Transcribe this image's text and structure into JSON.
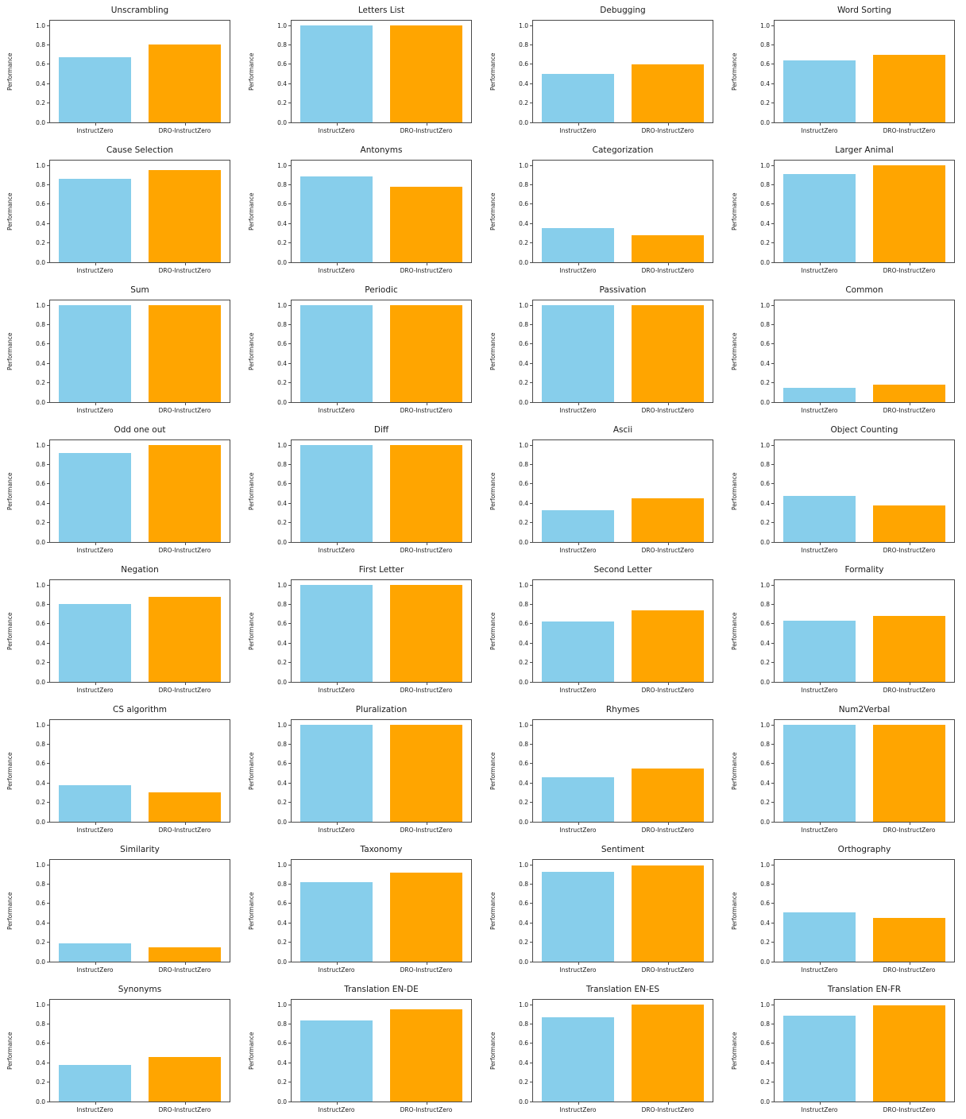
{
  "chart_data": {
    "type": "bar",
    "grid": {
      "rows": 8,
      "cols": 4
    },
    "categories": [
      "InstructZero",
      "DRO-InstructZero"
    ],
    "series_colors": [
      "#87CEEB",
      "#FFA500"
    ],
    "ylabel": "Performance",
    "yticks": [
      0.0,
      0.2,
      0.4,
      0.6,
      0.8,
      1.0
    ],
    "ylim": [
      0,
      1.05
    ],
    "grid_lines": "off",
    "legend": "none",
    "charts": [
      {
        "title": "Unscrambling",
        "values": [
          0.67,
          0.8
        ]
      },
      {
        "title": "Letters List",
        "values": [
          1.0,
          1.0
        ]
      },
      {
        "title": "Debugging",
        "values": [
          0.5,
          0.6
        ]
      },
      {
        "title": "Word Sorting",
        "values": [
          0.64,
          0.7
        ]
      },
      {
        "title": "Cause Selection",
        "values": [
          0.86,
          0.95
        ]
      },
      {
        "title": "Antonyms",
        "values": [
          0.89,
          0.78
        ]
      },
      {
        "title": "Categorization",
        "values": [
          0.35,
          0.28
        ]
      },
      {
        "title": "Larger Animal",
        "values": [
          0.91,
          1.0
        ]
      },
      {
        "title": "Sum",
        "values": [
          1.0,
          1.0
        ]
      },
      {
        "title": "Periodic",
        "values": [
          1.0,
          1.0
        ]
      },
      {
        "title": "Passivation",
        "values": [
          1.0,
          1.0
        ]
      },
      {
        "title": "Common",
        "values": [
          0.15,
          0.18
        ]
      },
      {
        "title": "Odd one out",
        "values": [
          0.92,
          1.0
        ]
      },
      {
        "title": "Diff",
        "values": [
          1.0,
          1.0
        ]
      },
      {
        "title": "Ascii",
        "values": [
          0.33,
          0.45
        ]
      },
      {
        "title": "Object Counting",
        "values": [
          0.48,
          0.38
        ]
      },
      {
        "title": "Negation",
        "values": [
          0.8,
          0.88
        ]
      },
      {
        "title": "First Letter",
        "values": [
          1.0,
          1.0
        ]
      },
      {
        "title": "Second Letter",
        "values": [
          0.62,
          0.74
        ]
      },
      {
        "title": "Formality",
        "values": [
          0.63,
          0.68
        ]
      },
      {
        "title": "CS algorithm",
        "values": [
          0.38,
          0.3
        ]
      },
      {
        "title": "Pluralization",
        "values": [
          1.0,
          1.0
        ]
      },
      {
        "title": "Rhymes",
        "values": [
          0.46,
          0.55
        ]
      },
      {
        "title": "Num2Verbal",
        "values": [
          1.0,
          1.0
        ]
      },
      {
        "title": "Similarity",
        "values": [
          0.19,
          0.15
        ]
      },
      {
        "title": "Taxonomy",
        "values": [
          0.82,
          0.92
        ]
      },
      {
        "title": "Sentiment",
        "values": [
          0.93,
          0.99
        ]
      },
      {
        "title": "Orthography",
        "values": [
          0.51,
          0.45
        ]
      },
      {
        "title": "Synonyms",
        "values": [
          0.38,
          0.46
        ]
      },
      {
        "title": "Translation EN-DE",
        "values": [
          0.84,
          0.95
        ]
      },
      {
        "title": "Translation EN-ES",
        "values": [
          0.87,
          1.0
        ]
      },
      {
        "title": "Translation EN-FR",
        "values": [
          0.89,
          0.99
        ]
      }
    ]
  }
}
